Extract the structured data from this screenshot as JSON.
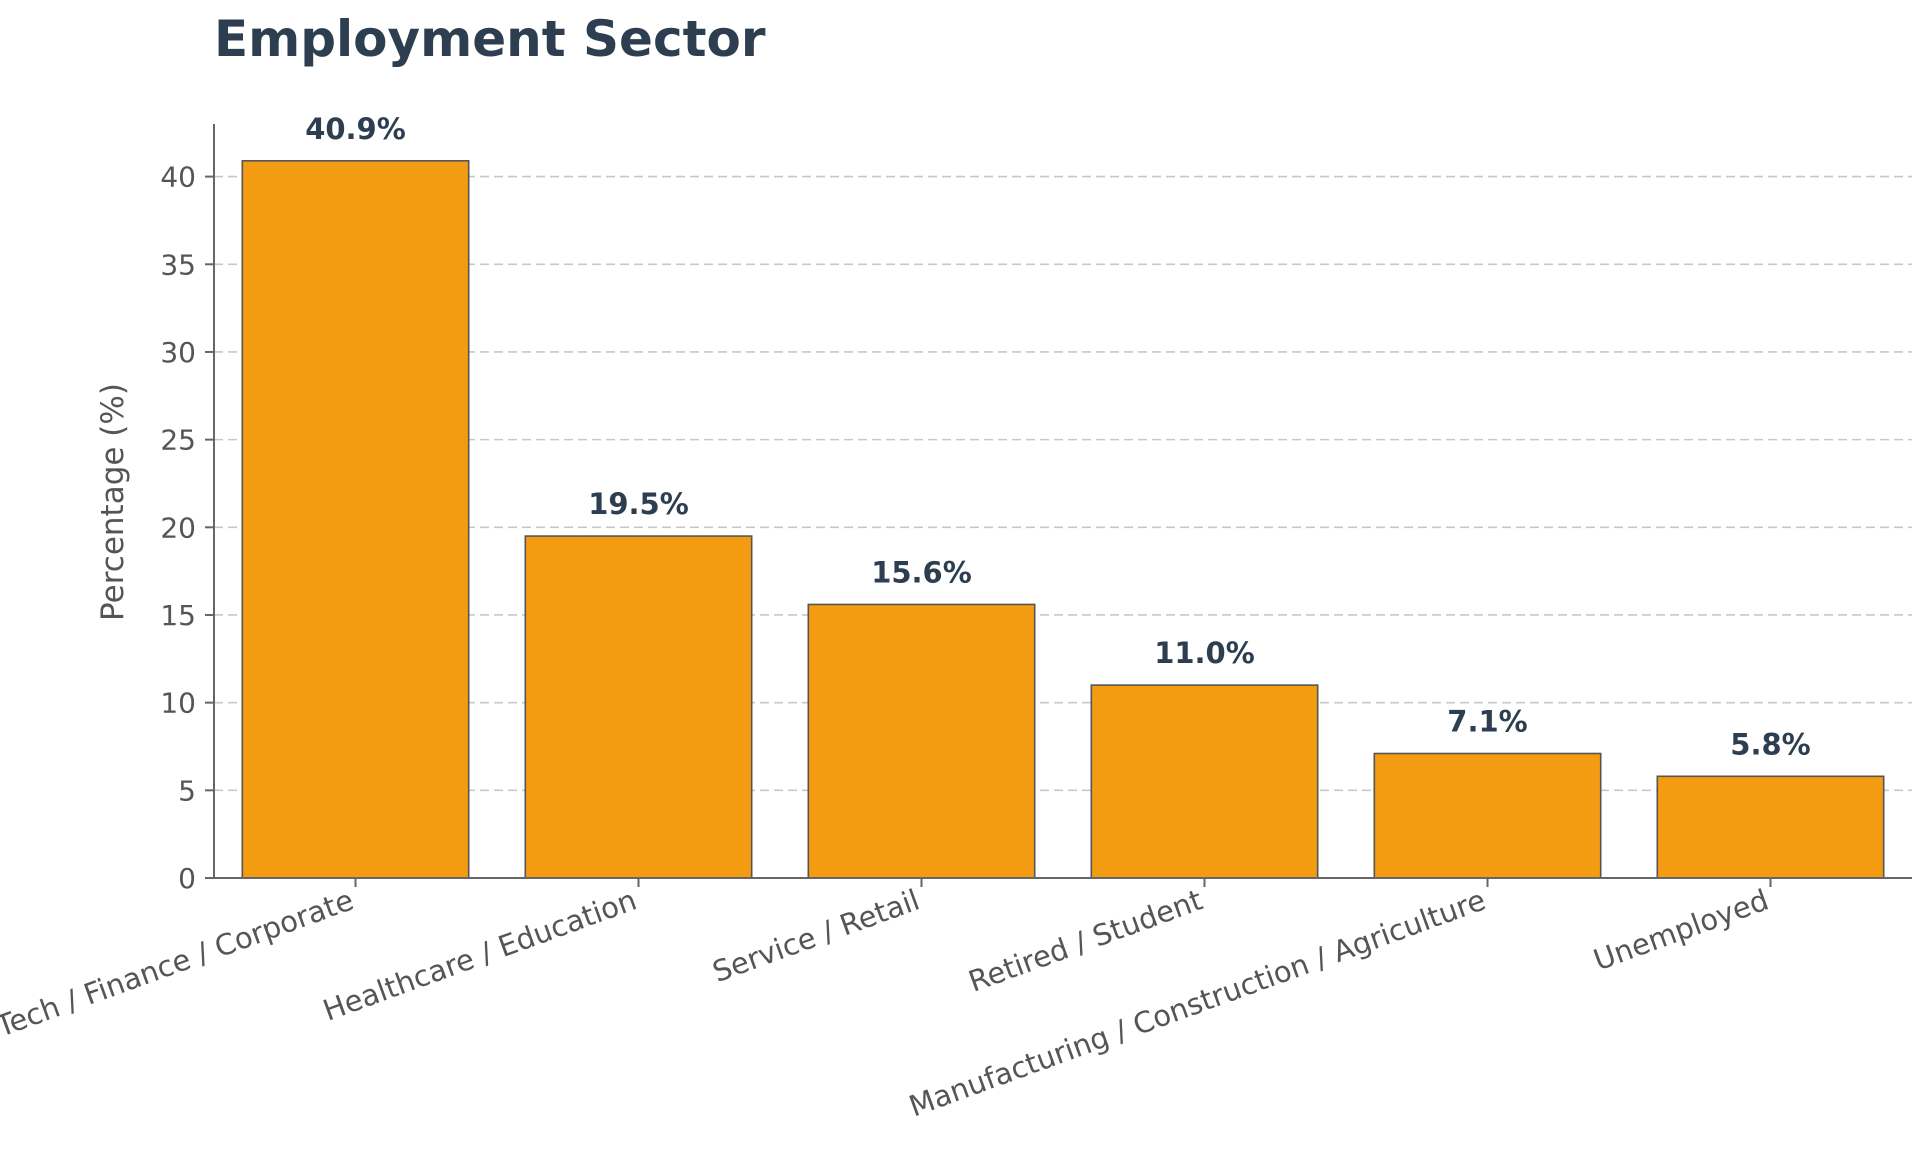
{
  "chart_data": {
    "type": "bar",
    "title": "Employment Sector",
    "xlabel": "",
    "ylabel": "Percentage (%)",
    "categories": [
      "Tech / Finance / Corporate",
      "Healthcare / Education",
      "Service / Retail",
      "Retired / Student",
      "Manufacturing / Construction / Agriculture",
      "Unemployed"
    ],
    "values": [
      40.9,
      19.5,
      15.6,
      11.0,
      7.1,
      5.8
    ],
    "value_labels": [
      "40.9%",
      "19.5%",
      "15.6%",
      "11.0%",
      "7.1%",
      "5.8%"
    ],
    "yticks": [
      0,
      5,
      10,
      15,
      20,
      25,
      30,
      35,
      40
    ],
    "ylim": [
      0,
      43
    ],
    "grid": true,
    "legend": "none",
    "bar_color": "#f39c12",
    "bar_edge_color": "#555555",
    "title_color": "#2c3e50"
  }
}
